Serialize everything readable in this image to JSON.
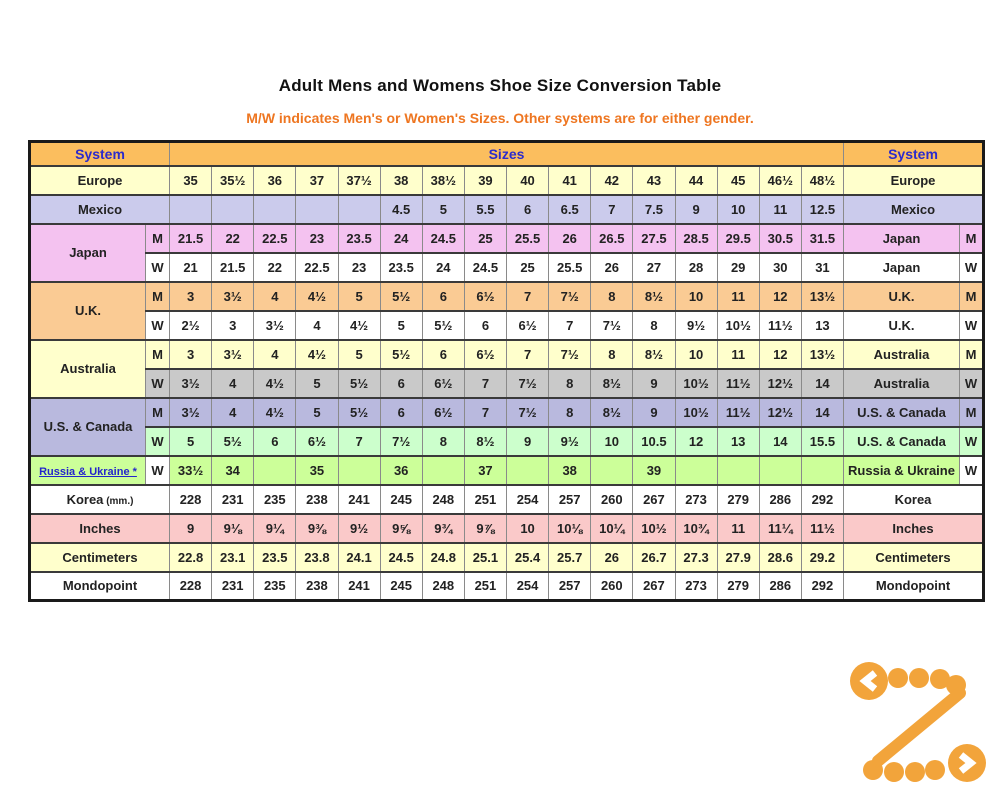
{
  "page": {
    "title": "Adult Mens and Womens Shoe Size Conversion Table",
    "subtitle": "M/W indicates Men's or Women's Sizes. Other systems are for either gender."
  },
  "colors": {
    "header_bg": "#FBBE5E",
    "header_text": "#2B2BCC",
    "subtitle_text": "#EE7621",
    "link_blue": "#2424CC",
    "logo_orange": "#F2A43B",
    "grid_dark": "#3a3a3a",
    "grid_red": "#cc7a72"
  },
  "table": {
    "header": {
      "system_left": "System",
      "sizes": "Sizes",
      "system_right": "System"
    },
    "rows": [
      {
        "kind": "plain",
        "label": "Europe",
        "right_label": "Europe",
        "bg": "#FFFFCC",
        "cells": [
          "35",
          "35½",
          "36",
          "37",
          "37½",
          "38",
          "38½",
          "39",
          "40",
          "41",
          "42",
          "43",
          "44",
          "45",
          "46½",
          "48½"
        ]
      },
      {
        "kind": "plain",
        "label": "Mexico",
        "right_label": "Mexico",
        "bg": "#CBCBEC",
        "cells": [
          "",
          "",
          "",
          "",
          "",
          "4.5",
          "5",
          "5.5",
          "6",
          "6.5",
          "7",
          "7.5",
          "9",
          "10",
          "11",
          "12.5"
        ]
      },
      {
        "kind": "group-top",
        "label": "Japan",
        "label_bg": "#F4C2F0",
        "mw": "M",
        "right_label": "Japan",
        "bg": "#F4C2F0",
        "cells": [
          "21.5",
          "22",
          "22.5",
          "23",
          "23.5",
          "24",
          "24.5",
          "25",
          "25.5",
          "26",
          "26.5",
          "27.5",
          "28.5",
          "29.5",
          "30.5",
          "31.5"
        ]
      },
      {
        "kind": "group-bottom",
        "mw": "W",
        "right_label": "Japan",
        "bg": "#FFFFFF",
        "cells": [
          "21",
          "21.5",
          "22",
          "22.5",
          "23",
          "23.5",
          "24",
          "24.5",
          "25",
          "25.5",
          "26",
          "27",
          "28",
          "29",
          "30",
          "31"
        ]
      },
      {
        "kind": "group-top",
        "label": "U.K.",
        "label_bg": "#FACB94",
        "mw": "M",
        "right_label": "U.K.",
        "bg": "#FACB94",
        "cells": [
          "3",
          "3½",
          "4",
          "4½",
          "5",
          "5½",
          "6",
          "6½",
          "7",
          "7½",
          "8",
          "8½",
          "10",
          "11",
          "12",
          "13½"
        ]
      },
      {
        "kind": "group-bottom",
        "mw": "W",
        "right_label": "U.K.",
        "bg": "#FFFFFF",
        "cells": [
          "2½",
          "3",
          "3½",
          "4",
          "4½",
          "5",
          "5½",
          "6",
          "6½",
          "7",
          "7½",
          "8",
          "9½",
          "10½",
          "11½",
          "13"
        ]
      },
      {
        "kind": "group-top",
        "label": "Australia",
        "label_bg": "#FFFFCC",
        "mw": "M",
        "right_label": "Australia",
        "bg": "#FFFFCC",
        "cells": [
          "3",
          "3½",
          "4",
          "4½",
          "5",
          "5½",
          "6",
          "6½",
          "7",
          "7½",
          "8",
          "8½",
          "10",
          "11",
          "12",
          "13½"
        ]
      },
      {
        "kind": "group-bottom",
        "mw": "W",
        "right_label": "Australia",
        "bg": "#C9C9C9",
        "cells": [
          "3½",
          "4",
          "4½",
          "5",
          "5½",
          "6",
          "6½",
          "7",
          "7½",
          "8",
          "8½",
          "9",
          "10½",
          "11½",
          "12½",
          "14"
        ]
      },
      {
        "kind": "group-top",
        "label": "U.S. & Canada",
        "label_bg": "#B9B9DE",
        "mw": "M",
        "right_label": "U.S. & Canada",
        "bg": "#B9B9DE",
        "cells": [
          "3½",
          "4",
          "4½",
          "5",
          "5½",
          "6",
          "6½",
          "7",
          "7½",
          "8",
          "8½",
          "9",
          "10½",
          "11½",
          "12½",
          "14"
        ]
      },
      {
        "kind": "group-bottom",
        "mw": "W",
        "right_label": "U.S. & Canada",
        "bg": "#CCFFCC",
        "cells": [
          "5",
          "5½",
          "6",
          "6½",
          "7",
          "7½",
          "8",
          "8½",
          "9",
          "9½",
          "10",
          "10.5",
          "12",
          "13",
          "14",
          "15.5"
        ]
      },
      {
        "kind": "link",
        "label": "Russia & Ukraine *",
        "mw": "W",
        "mw_bg": "#FFFFFF",
        "right_label": "Russia & Ukraine",
        "bg": "#CCFF99",
        "cells": [
          "33½",
          "34",
          "",
          "35",
          "",
          "36",
          "",
          "37",
          "",
          "38",
          "",
          "39",
          "",
          "",
          "",
          ""
        ]
      },
      {
        "kind": "plain",
        "label": "Korea",
        "label_small": "(mm.)",
        "right_label": "Korea",
        "bg": "#FFFFFF",
        "cells": [
          "228",
          "231",
          "235",
          "238",
          "241",
          "245",
          "248",
          "251",
          "254",
          "257",
          "260",
          "267",
          "273",
          "279",
          "286",
          "292"
        ]
      },
      {
        "kind": "plain",
        "label": "Inches",
        "right_label": "Inches",
        "bg": "#FAC9C9",
        "cells": [
          "9",
          "9⅛",
          "9¼",
          "9⅜",
          "9½",
          "9⅝",
          "9¾",
          "9⅞",
          "10",
          "10⅛",
          "10¼",
          "10½",
          "10¾",
          "11",
          "11¼",
          "11½"
        ]
      },
      {
        "kind": "plain",
        "label": "Centimeters",
        "right_label": "Centimeters",
        "bg": "#FFFFCC",
        "cells": [
          "22.8",
          "23.1",
          "23.5",
          "23.8",
          "24.1",
          "24.5",
          "24.8",
          "25.1",
          "25.4",
          "25.7",
          "26",
          "26.7",
          "27.3",
          "27.9",
          "28.6",
          "29.2"
        ]
      },
      {
        "kind": "plain",
        "label": "Mondopoint",
        "right_label": "Mondopoint",
        "bg": "#FFFFFF",
        "cells": [
          "228",
          "231",
          "235",
          "238",
          "241",
          "245",
          "248",
          "251",
          "254",
          "257",
          "260",
          "267",
          "273",
          "279",
          "286",
          "292"
        ]
      }
    ]
  },
  "logo": {
    "name": "dotted-z-logo",
    "color": "#F2A43B"
  }
}
